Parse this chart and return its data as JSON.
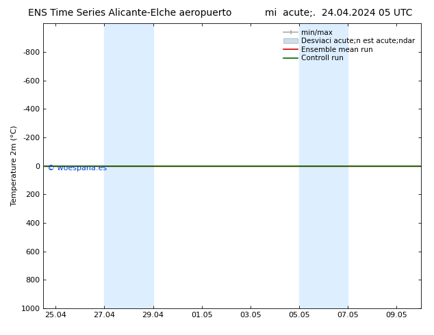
{
  "title_left": "ENS Time Series Alicante-Elche aeropuerto",
  "title_right": "mi  acute;.  24.04.2024 05 UTC",
  "ylabel": "Temperature 2m (°C)",
  "ylim_top": -1000,
  "ylim_bottom": 1000,
  "yticks": [
    -800,
    -600,
    -400,
    -200,
    0,
    200,
    400,
    600,
    800,
    1000
  ],
  "xtick_positions": [
    0,
    2,
    4,
    6,
    8,
    10,
    12,
    14
  ],
  "xtick_labels": [
    "25.04",
    "27.04",
    "29.04",
    "01.05",
    "03.05",
    "05.05",
    "07.05",
    "09.05"
  ],
  "xlim": [
    -0.5,
    15.0
  ],
  "shaded_bands": [
    {
      "x_start": 2.0,
      "x_end": 4.0
    },
    {
      "x_start": 10.0,
      "x_end": 12.0
    }
  ],
  "shade_color": "#ddeeff",
  "control_run_y": 0,
  "ensemble_mean_y": 0,
  "line_color_ensemble": "#cc0000",
  "line_color_control": "#006600",
  "legend_minmax_color": "#aaaaaa",
  "legend_std_color": "#ccddee",
  "watermark": "© woespana.es",
  "watermark_color": "#0044cc",
  "background_color": "#ffffff",
  "tick_label_fontsize": 8,
  "title_fontsize": 10,
  "ylabel_fontsize": 8,
  "legend_fontsize": 7.5
}
